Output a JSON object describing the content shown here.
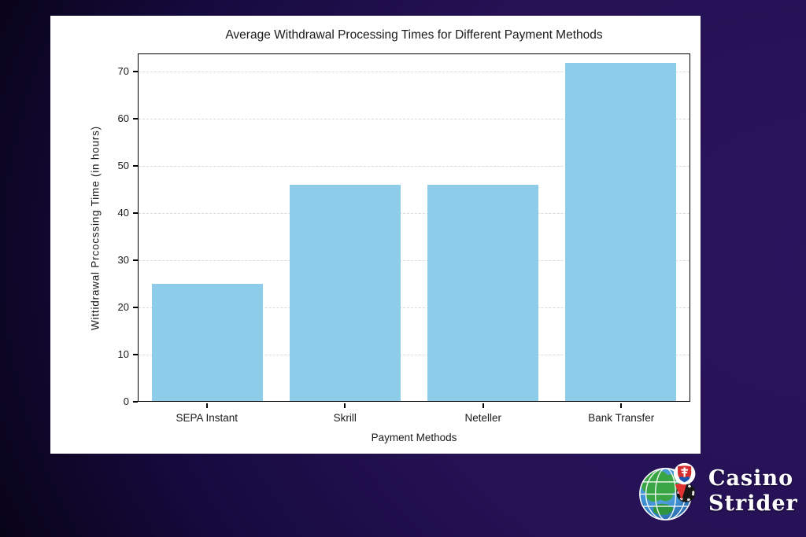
{
  "background": {
    "purple": "#251153",
    "black": "#000000"
  },
  "chart_panel": {
    "bg": "#ffffff"
  },
  "chart_data": {
    "type": "bar",
    "title": "Average Withdrawal Processing Times for Different Payment Methods",
    "xlabel": "Payment Methods",
    "ylabel": "Wittidrawal Prcocssing Time (in hours)",
    "categories": [
      "SEPA Instant",
      "Skrill",
      "Neteller",
      "Bank Transfer"
    ],
    "values": [
      25,
      46,
      46,
      72
    ],
    "ylim": [
      0,
      73.8
    ],
    "yticks": [
      0,
      10,
      20,
      30,
      40,
      50,
      60,
      70
    ],
    "grid": "horizontal-dashed",
    "legend": "none",
    "bar_color": "#8dcdea",
    "grid_color": "#d9d9d9",
    "axis_color": "#000000",
    "text_color": "#1a1a1a"
  },
  "logo": {
    "line1": "Casino",
    "line2": "Strider",
    "text_color": "#ffffff",
    "globe_ocean": "#3d8fd1",
    "globe_land": "#3aa544",
    "globe_grid": "#ffffff",
    "pin_red": "#e03131",
    "chip_black": "#161616",
    "shield_red": "#d32f2f",
    "shield_blue": "#1a56b0"
  }
}
